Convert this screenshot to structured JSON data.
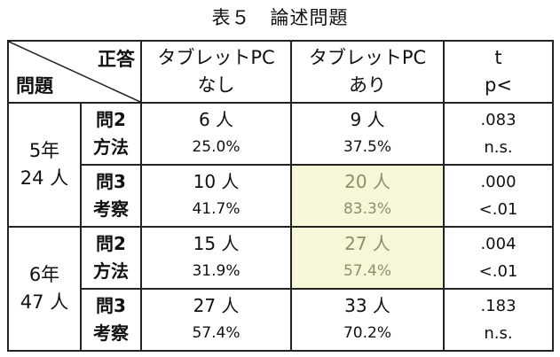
{
  "title": "表５　論述問題",
  "header": {
    "corner_top": "正答",
    "corner_bottom": "問題",
    "col_no_tablet": [
      "タブレットPC",
      "なし"
    ],
    "col_tablet": [
      "タブレットPC",
      "あり"
    ],
    "col_t": [
      "t",
      "p<"
    ]
  },
  "groups": [
    {
      "grade": [
        "5年",
        "24 人"
      ],
      "rows": [
        {
          "question": [
            "問2",
            "方法"
          ],
          "no_tablet": [
            "6 人",
            "25.0%"
          ],
          "tablet": [
            "9 人",
            "37.5%"
          ],
          "highlight": false,
          "t": [
            ".083",
            "n.s."
          ]
        },
        {
          "question": [
            "問3",
            "考察"
          ],
          "no_tablet": [
            "10 人",
            "41.7%"
          ],
          "tablet": [
            "20 人",
            "83.3%"
          ],
          "highlight": true,
          "t": [
            ".000",
            "<.01"
          ]
        }
      ]
    },
    {
      "grade": [
        "6年",
        "47 人"
      ],
      "rows": [
        {
          "question": [
            "問2",
            "方法"
          ],
          "no_tablet": [
            "15 人",
            "31.9%"
          ],
          "tablet": [
            "27 人",
            "57.4%"
          ],
          "highlight": true,
          "t": [
            ".004",
            "<.01"
          ]
        },
        {
          "question": [
            "問3",
            "考察"
          ],
          "no_tablet": [
            "27 人",
            "57.4%"
          ],
          "tablet": [
            "33 人",
            "70.2%"
          ],
          "highlight": false,
          "t": [
            ".183",
            "n.s."
          ]
        }
      ]
    }
  ],
  "colors": {
    "highlight_bg": "#f8f6d8",
    "highlight_text": "#8f8e6a",
    "border": "#222222"
  }
}
